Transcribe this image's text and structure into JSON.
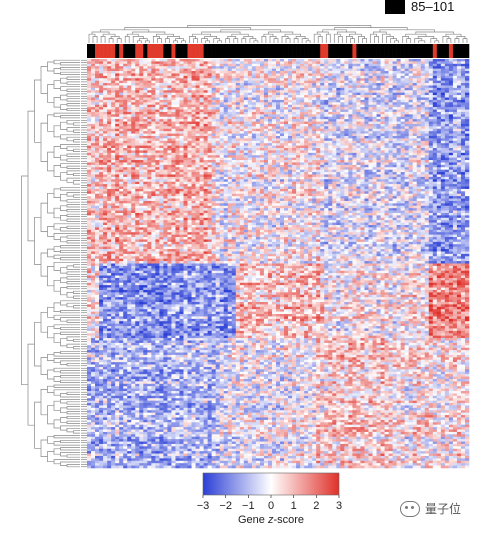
{
  "legend": {
    "entry_label": "85–101",
    "entry_color": "#000000"
  },
  "annotation_colors": {
    "group_a": "#000000",
    "group_b": "#e03a2b"
  },
  "watermark": {
    "text": "量子位",
    "icon": "wechat-icon"
  },
  "chart_data": {
    "type": "heatmap",
    "title": "",
    "clustering": {
      "row_dendrogram": true,
      "column_dendrogram": true
    },
    "color_scale": {
      "min": -3,
      "max": 3,
      "low_color": "#2b3fd6",
      "mid_color": "#ffffff",
      "high_color": "#e0302a",
      "title_prefix": "Gene ",
      "title_italic": "z",
      "title_suffix": "-score",
      "ticks": [
        "−3",
        "−2",
        "−1",
        "0",
        "1",
        "2",
        "3"
      ]
    },
    "row_blocks": [
      {
        "rows_fraction": 0.5,
        "pattern": "red-left-blue-right"
      },
      {
        "rows_fraction": 0.18,
        "pattern": "blue-left-red-mid-red-right"
      },
      {
        "rows_fraction": 0.32,
        "pattern": "blue-left-red-mid"
      }
    ],
    "column_annotation": "binary group strip (black / red)"
  }
}
